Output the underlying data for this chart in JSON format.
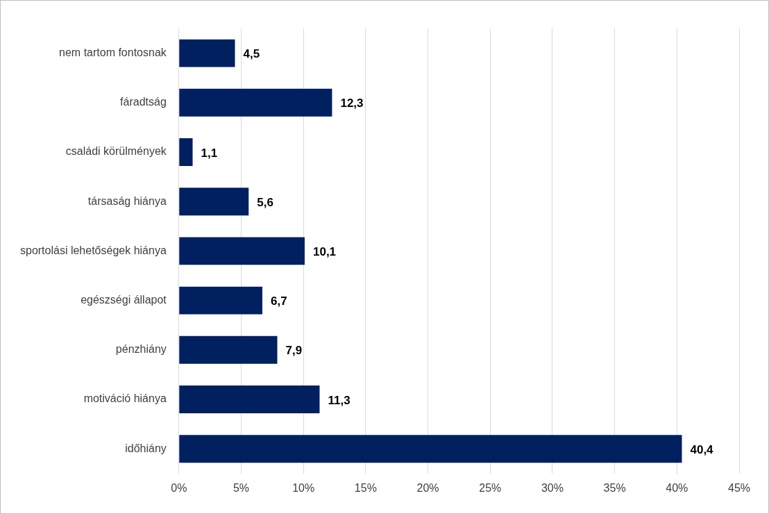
{
  "chart_data": {
    "type": "bar",
    "orientation": "horizontal",
    "categories": [
      "nem tartom fontosnak",
      "fáradtság",
      "családi körülmények",
      "társaság hiánya",
      "sportolási lehetőségek hiánya",
      "egészségi állapot",
      "pénzhiány",
      "motiváció hiánya",
      "időhiány"
    ],
    "values": [
      4.5,
      12.3,
      1.1,
      5.6,
      10.1,
      6.7,
      7.9,
      11.3,
      40.4
    ],
    "value_labels": [
      "4,5",
      "12,3",
      "1,1",
      "5,6",
      "10,1",
      "6,7",
      "7,9",
      "11,3",
      "40,4"
    ],
    "color": "#002060",
    "xlim": [
      0,
      45
    ],
    "xticks": [
      {
        "value": 0,
        "label": "0%"
      },
      {
        "value": 5,
        "label": "5%"
      },
      {
        "value": 10,
        "label": "10%"
      },
      {
        "value": 15,
        "label": "15%"
      },
      {
        "value": 20,
        "label": "20%"
      },
      {
        "value": 25,
        "label": "25%"
      },
      {
        "value": 30,
        "label": "30%"
      },
      {
        "value": 35,
        "label": "35%"
      },
      {
        "value": 40,
        "label": "40%"
      },
      {
        "value": 45,
        "label": "45%"
      }
    ],
    "grid": "x",
    "legend": false
  }
}
